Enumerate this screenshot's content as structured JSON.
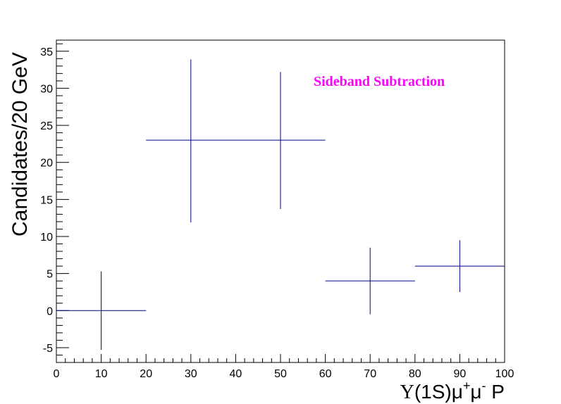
{
  "chart_data": {
    "type": "scatter",
    "title": "",
    "xlabel": {
      "greek": "Υ",
      "main": "(1S)μ",
      "sup1": "+",
      "mu": "μ",
      "sup2": "-",
      "end": " P"
    },
    "ylabel": "Candidates/20 GeV",
    "annotation": "Sideband Subtraction",
    "annotation_color": "#ff00ff",
    "marker_color": "#000080",
    "xlim": [
      0,
      100
    ],
    "ylim": [
      -7,
      36.5
    ],
    "x_tick_labels": [
      "0",
      "10",
      "20",
      "30",
      "40",
      "50",
      "60",
      "70",
      "80",
      "90",
      "100"
    ],
    "y_tick_labels": [
      "-5",
      "0",
      "5",
      "10",
      "15",
      "20",
      "25",
      "30",
      "35"
    ],
    "points": [
      {
        "x": 10,
        "xerr": 10,
        "y": 0,
        "yerr_low": 5.3,
        "yerr_high": 5.3
      },
      {
        "x": 30,
        "xerr": 10,
        "y": 23,
        "yerr_low": 11.1,
        "yerr_high": 10.9
      },
      {
        "x": 50,
        "xerr": 10,
        "y": 23,
        "yerr_low": 9.3,
        "yerr_high": 9.2
      },
      {
        "x": 70,
        "xerr": 10,
        "y": 4,
        "yerr_low": 4.5,
        "yerr_high": 4.5
      },
      {
        "x": 90,
        "xerr": 10,
        "y": 6,
        "yerr_low": 3.5,
        "yerr_high": 3.5
      }
    ]
  }
}
